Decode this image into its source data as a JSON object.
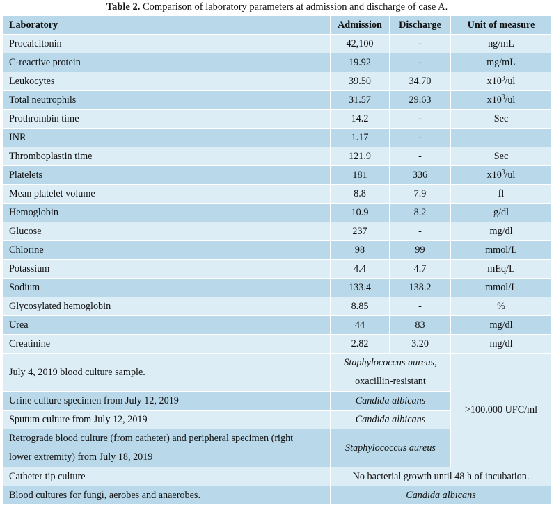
{
  "caption": {
    "label": "Table 2.",
    "text": " Comparison of laboratory parameters at admission and discharge of case A."
  },
  "headers": {
    "laboratory": "Laboratory",
    "admission": "Admission",
    "discharge": "Discharge",
    "unit": "Unit of measure"
  },
  "rows": [
    {
      "name": "Procalcitonin",
      "admission": "42,100",
      "discharge": "-",
      "unit": "ng/mL"
    },
    {
      "name": "C-reactive protein",
      "admission": "19.92",
      "discharge": "-",
      "unit": "mg/mL"
    },
    {
      "name": "Leukocytes",
      "admission": "39.50",
      "discharge": "34.70",
      "unit_pre": "x10",
      "unit_sup": "3",
      "unit_post": "/ul"
    },
    {
      "name": "Total neutrophils",
      "admission": "31.57",
      "discharge": "29.63",
      "unit_pre": "x10",
      "unit_sup": "3",
      "unit_post": "/ul"
    },
    {
      "name": "Prothrombin time",
      "admission": "14.2",
      "discharge": "-",
      "unit": "Sec"
    },
    {
      "name": "INR",
      "admission": "1.17",
      "discharge": "-",
      "unit": ""
    },
    {
      "name": "Thromboplastin time",
      "admission": "121.9",
      "discharge": "-",
      "unit": "Sec"
    },
    {
      "name": "Platelets",
      "admission": "181",
      "discharge": "336",
      "unit_pre": "x10",
      "unit_sup": "3",
      "unit_post": "/ul"
    },
    {
      "name": "Mean platelet volume",
      "admission": "8.8",
      "discharge": "7.9",
      "unit": "fl"
    },
    {
      "name": "Hemoglobin",
      "admission": "10.9",
      "discharge": "8.2",
      "unit": "g/dl"
    },
    {
      "name": "Glucose",
      "admission": "237",
      "discharge": "-",
      "unit": "mg/dl"
    },
    {
      "name": "Chlorine",
      "admission": "98",
      "discharge": "99",
      "unit": "mmol/L"
    },
    {
      "name": "Potassium",
      "admission": "4.4",
      "discharge": "4.7",
      "unit": "mEq/L"
    },
    {
      "name": "Sodium",
      "admission": "133.4",
      "discharge": "138.2",
      "unit": "mmol/L"
    },
    {
      "name": "Glycosylated hemoglobin",
      "admission": "8.85",
      "discharge": "-",
      "unit": "%"
    },
    {
      "name": "Urea",
      "admission": "44",
      "discharge": "83",
      "unit": "mg/dl"
    },
    {
      "name": "Creatinine",
      "admission": "2.82",
      "discharge": "3.20",
      "unit": "mg/dl"
    }
  ],
  "cultures": {
    "blood_july4": {
      "name": "July 4, 2019 blood culture sample.",
      "result_line1": "Staphylococcus aureus,",
      "result_line2": "oxacillin-resistant"
    },
    "urine": {
      "name": "Urine culture specimen from July 12, 2019",
      "result": "Candida albicans"
    },
    "sputum": {
      "name": "Sputum culture from July 12, 2019",
      "result": "Candida albicans"
    },
    "retrograde": {
      "name_line1": "Retrograde blood culture (from catheter) and peripheral specimen (right",
      "name_line2": "lower extremity) from July 18, 2019",
      "result": "Staphylococcus aureus"
    },
    "shared_unit": ">100.000 UFC/ml",
    "catheter": {
      "name": "Catheter tip culture",
      "result": "No bacterial growth until 48 h of incubation."
    },
    "fungi": {
      "name": "Blood cultures for fungi, aerobes and anaerobes.",
      "result": "Candida albicans"
    }
  }
}
